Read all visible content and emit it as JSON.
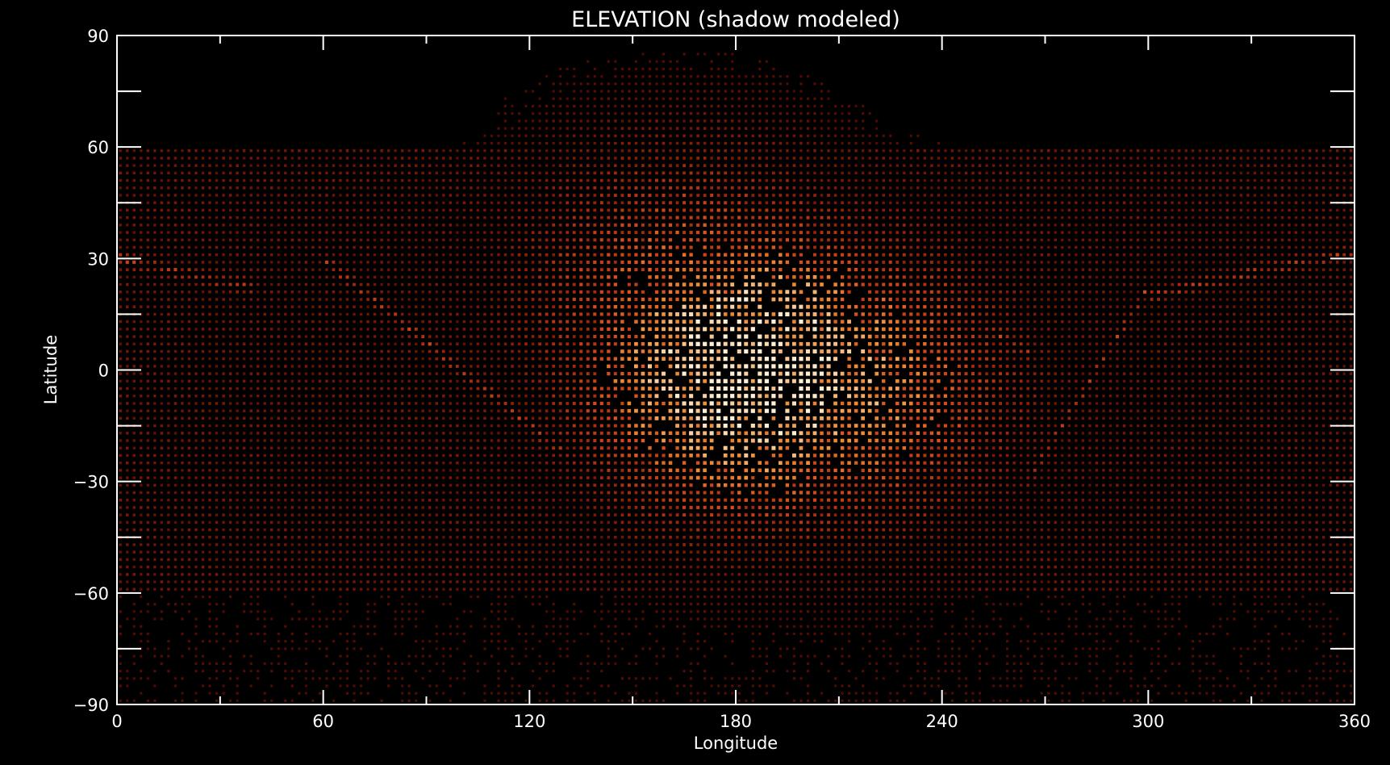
{
  "chart_data": {
    "type": "heatmap",
    "title": "ELEVATION (shadow modeled)",
    "xlabel": "Longitude",
    "ylabel": "Latitude",
    "xlim": [
      0,
      360
    ],
    "ylim": [
      -90,
      90
    ],
    "x_ticks": [
      0,
      60,
      120,
      180,
      240,
      300,
      360
    ],
    "y_ticks": [
      -90,
      -60,
      -30,
      0,
      30,
      60,
      90
    ],
    "x_tick_labels": [
      "0",
      "60",
      "120",
      "180",
      "240",
      "300",
      "360"
    ],
    "y_tick_labels": [
      "−90",
      "−60",
      "−30",
      "0",
      "30",
      "60",
      "90"
    ],
    "x_minor_step": 30,
    "y_minor_step": 15,
    "grid": false,
    "legend": "none",
    "colors": {
      "background": "#000000",
      "axes": "#ffffff",
      "text": "#ffffff",
      "low": "#5a0c00",
      "mid": "#c8401a",
      "high": "#f08a2a",
      "peak": "#fff4e0"
    },
    "hotspots": [
      {
        "lon": 185,
        "lat": 0,
        "peak": 1.0
      },
      {
        "lon": 210,
        "lat": -3,
        "peak": 0.75
      },
      {
        "lon": 165,
        "lat": 20,
        "peak": 0.6
      }
    ]
  }
}
